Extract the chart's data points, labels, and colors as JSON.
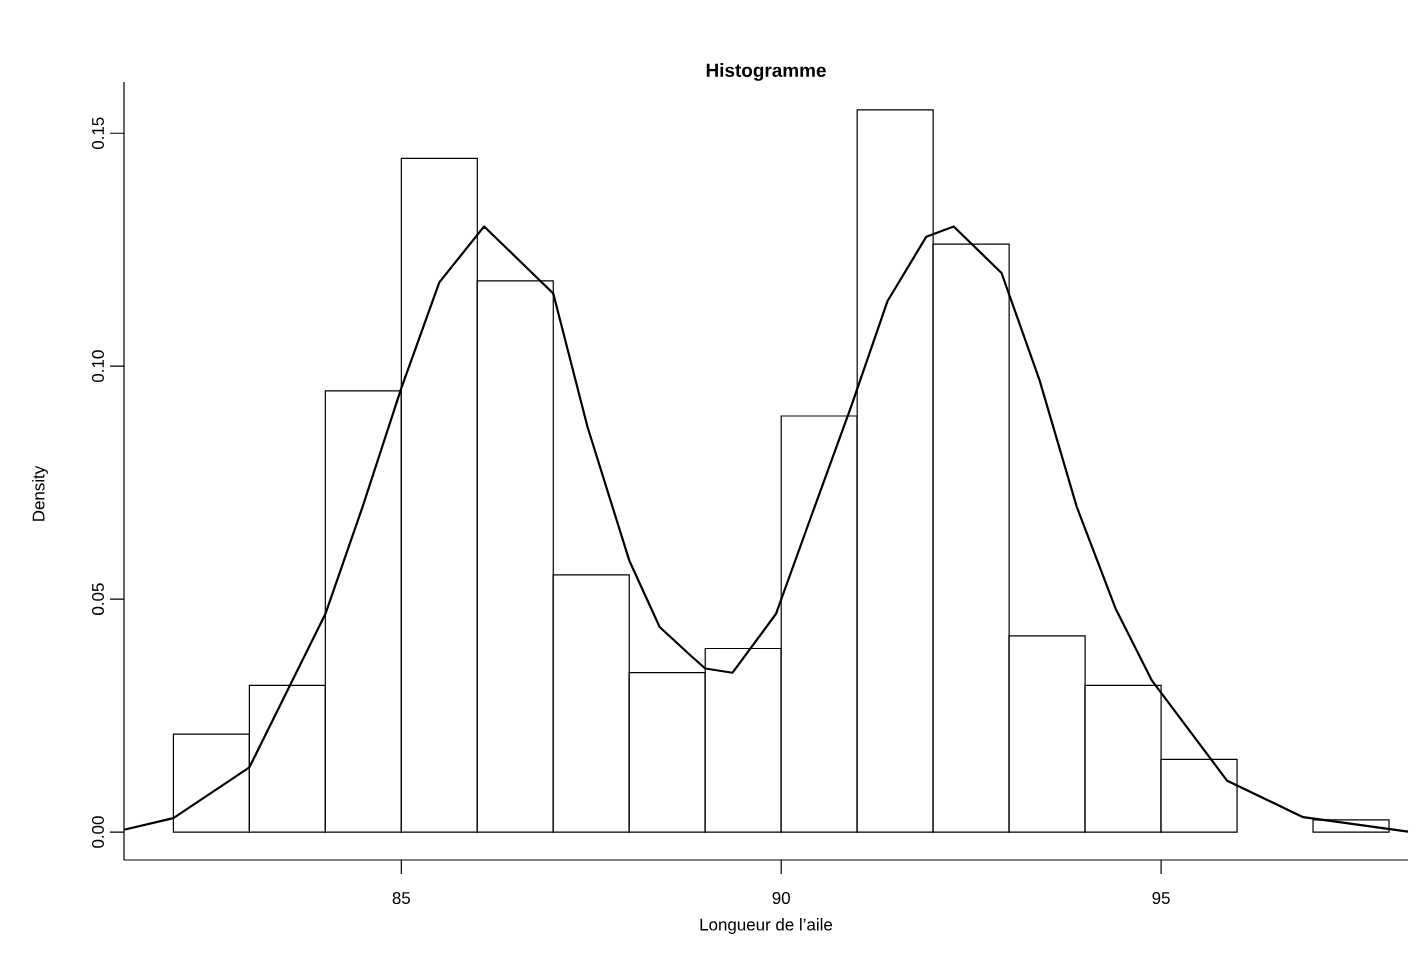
{
  "chart_data": {
    "type": "histogram",
    "title": "Histogramme",
    "xlabel": "Longueur de l’aile",
    "ylabel": "Density",
    "bins": [
      82,
      83,
      84,
      85,
      86,
      87,
      88,
      89,
      90,
      91,
      92,
      93,
      94,
      95,
      96,
      97,
      98
    ],
    "values": [
      0.021,
      0.0315,
      0.0947,
      0.1446,
      0.1183,
      0.0552,
      0.0342,
      0.0394,
      0.0893,
      0.155,
      0.1262,
      0.0421,
      0.0315,
      0.0156,
      0,
      0.0026
    ],
    "color": "#ffffff",
    "series": [
      {
        "type": "line",
        "color": "#000000",
        "x": [
          81.35,
          82.0,
          83.0,
          84.0,
          84.49,
          85.0,
          85.5,
          86.09,
          87.0,
          87.45,
          88.0,
          88.4,
          88.8,
          89.0,
          89.36,
          89.93,
          90.4,
          90.92,
          91.4,
          91.91,
          92.27,
          92.9,
          93.4,
          93.89,
          94.4,
          94.88,
          95.87,
          96.87,
          98.25
        ],
        "values": [
          0.0005,
          0.003,
          0.0139,
          0.0468,
          0.0698,
          0.0953,
          0.118,
          0.13,
          0.1156,
          0.087,
          0.0583,
          0.044,
          0.038,
          0.0351,
          0.0342,
          0.0468,
          0.068,
          0.0913,
          0.114,
          0.1278,
          0.13,
          0.12,
          0.097,
          0.0698,
          0.048,
          0.0325,
          0.011,
          0.0032,
          0.0001
        ]
      }
    ],
    "xlim": [
      81.35,
      98.25
    ],
    "ylim": [
      -0.006,
      0.161
    ],
    "xticks": [
      85,
      90,
      95
    ],
    "yticks": [
      {
        "value": 0,
        "label": "0.00"
      },
      {
        "value": 0.05,
        "label": "0.05"
      },
      {
        "value": 0.1,
        "label": "0.10"
      },
      {
        "value": 0.15,
        "label": "0.15"
      }
    ]
  }
}
